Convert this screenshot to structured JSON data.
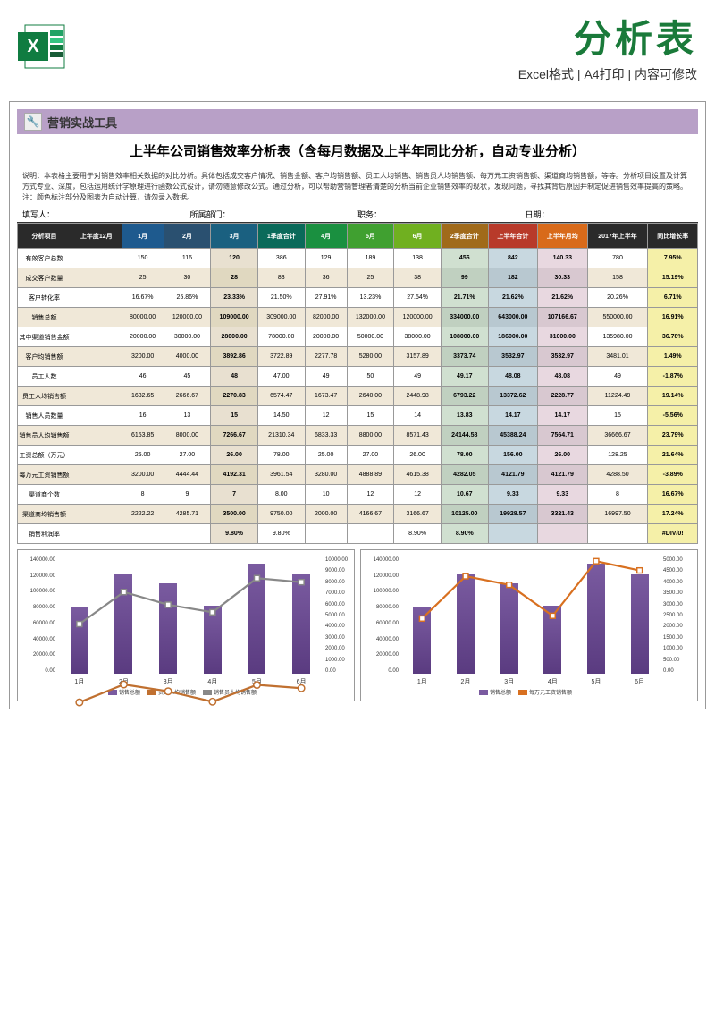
{
  "header": {
    "main_title": "分析表",
    "sub_title": "Excel格式 | A4打印 | 内容可修改"
  },
  "toolbar": {
    "label": "营销实战工具"
  },
  "doc_title": "上半年公司销售效率分析表（含每月数据及上半年同比分析，自动专业分析）",
  "description": "说明：本表格主要用于对销售效率相关数据的对比分析。具体包括成交客户情况、销售金额、客户均销售额、员工人均销售、销售员人均销售额、每万元工资销售额、渠道商均销售额，等等。分析项目设置及计算方式专业、深度，包括运用统计学原理进行函数公式设计，请勿随意修改公式。通过分析，可以帮助营销管理者清楚的分析当前企业销售效率的现状，发现问题，寻找其背后原因并制定促进销售效率提高的策略。注：颜色标注部分及图表为自动计算，请勿录入数据。",
  "meta": {
    "writer": "填写人：",
    "dept": "所属部门：",
    "role": "职务：",
    "date": "日期："
  },
  "columns": [
    {
      "label": "分析项目",
      "bg": "#2a2a2a"
    },
    {
      "label": "上年度12月",
      "bg": "#2a2a2a"
    },
    {
      "label": "1月",
      "bg": "#1e5a8e"
    },
    {
      "label": "2月",
      "bg": "#2a5070"
    },
    {
      "label": "3月",
      "bg": "#1a6080"
    },
    {
      "label": "1季度合计",
      "bg": "#0a6a5a"
    },
    {
      "label": "4月",
      "bg": "#1a9040"
    },
    {
      "label": "5月",
      "bg": "#40a030"
    },
    {
      "label": "6月",
      "bg": "#70b020"
    },
    {
      "label": "2季度合计",
      "bg": "#a06a1a"
    },
    {
      "label": "上半年合计",
      "bg": "#b83a2a"
    },
    {
      "label": "上半年月均",
      "bg": "#d86a1a"
    },
    {
      "label": "2017年上半年",
      "bg": "#2a2a2a"
    },
    {
      "label": "同比增长率",
      "bg": "#2a2a2a"
    }
  ],
  "rows": [
    {
      "label": "有效客户总数",
      "cells": [
        "",
        "150",
        "116",
        "120",
        "386",
        "129",
        "189",
        "138",
        "456",
        "842",
        "140.33",
        "780",
        "7.95%"
      ]
    },
    {
      "label": "成交客户数量",
      "cells": [
        "",
        "25",
        "30",
        "28",
        "83",
        "36",
        "25",
        "38",
        "99",
        "182",
        "30.33",
        "158",
        "15.19%"
      ]
    },
    {
      "label": "客户转化率",
      "cells": [
        "",
        "16.67%",
        "25.86%",
        "23.33%",
        "21.50%",
        "27.91%",
        "13.23%",
        "27.54%",
        "21.71%",
        "21.62%",
        "21.62%",
        "20.26%",
        "6.71%"
      ]
    },
    {
      "label": "销售总额",
      "cells": [
        "",
        "80000.00",
        "120000.00",
        "109000.00",
        "309000.00",
        "82000.00",
        "132000.00",
        "120000.00",
        "334000.00",
        "643000.00",
        "107166.67",
        "550000.00",
        "16.91%"
      ]
    },
    {
      "label": "其中渠道销售金额",
      "cells": [
        "",
        "20000.00",
        "30000.00",
        "28000.00",
        "78000.00",
        "20000.00",
        "50000.00",
        "38000.00",
        "108000.00",
        "186000.00",
        "31000.00",
        "135980.00",
        "36.78%"
      ]
    },
    {
      "label": "客户均销售额",
      "cells": [
        "",
        "3200.00",
        "4000.00",
        "3892.86",
        "3722.89",
        "2277.78",
        "5280.00",
        "3157.89",
        "3373.74",
        "3532.97",
        "3532.97",
        "3481.01",
        "1.49%"
      ]
    },
    {
      "label": "员工人数",
      "cells": [
        "",
        "46",
        "45",
        "48",
        "47.00",
        "49",
        "50",
        "49",
        "49.17",
        "48.08",
        "48.08",
        "49",
        "-1.87%"
      ]
    },
    {
      "label": "员工人均销售额",
      "cells": [
        "",
        "1632.65",
        "2666.67",
        "2270.83",
        "6574.47",
        "1673.47",
        "2640.00",
        "2448.98",
        "6793.22",
        "13372.62",
        "2228.77",
        "11224.49",
        "19.14%"
      ]
    },
    {
      "label": "销售人员数量",
      "cells": [
        "",
        "16",
        "13",
        "15",
        "14.50",
        "12",
        "15",
        "14",
        "13.83",
        "14.17",
        "14.17",
        "15",
        "-5.56%"
      ]
    },
    {
      "label": "销售员人均销售额",
      "cells": [
        "",
        "6153.85",
        "8000.00",
        "7266.67",
        "21310.34",
        "6833.33",
        "8800.00",
        "8571.43",
        "24144.58",
        "45388.24",
        "7564.71",
        "36666.67",
        "23.79%"
      ]
    },
    {
      "label": "工资总额（万元）",
      "cells": [
        "",
        "25.00",
        "27.00",
        "26.00",
        "78.00",
        "25.00",
        "27.00",
        "26.00",
        "78.00",
        "156.00",
        "26.00",
        "128.25",
        "21.64%"
      ]
    },
    {
      "label": "每万元工资销售额",
      "cells": [
        "",
        "3200.00",
        "4444.44",
        "4192.31",
        "3961.54",
        "3280.00",
        "4888.89",
        "4615.38",
        "4282.05",
        "4121.79",
        "4121.79",
        "4288.50",
        "-3.89%"
      ]
    },
    {
      "label": "渠道商个数",
      "cells": [
        "",
        "8",
        "9",
        "7",
        "8.00",
        "10",
        "12",
        "12",
        "10.67",
        "9.33",
        "9.33",
        "8",
        "16.67%"
      ]
    },
    {
      "label": "渠道商均销售额",
      "cells": [
        "",
        "2222.22",
        "4285.71",
        "3500.00",
        "9750.00",
        "2000.00",
        "4166.67",
        "3166.67",
        "10125.00",
        "19928.57",
        "3321.43",
        "16997.50",
        "17.24%"
      ]
    },
    {
      "label": "销售利润率",
      "cells": [
        "",
        "",
        "",
        "9.80%",
        "9.80%",
        "",
        "",
        "8.90%",
        "8.90%",
        "",
        "",
        "",
        "#DIV/0!"
      ]
    }
  ],
  "chart1": {
    "y_max": 140000,
    "y_ticks": [
      "140000.00",
      "120000.00",
      "100000.00",
      "80000.00",
      "60000.00",
      "40000.00",
      "20000.00",
      "0.00"
    ],
    "y2_ticks": [
      "10000.00",
      "9000.00",
      "8000.00",
      "7000.00",
      "6000.00",
      "5000.00",
      "4000.00",
      "3000.00",
      "2000.00",
      "1000.00",
      "0.00"
    ],
    "x": [
      "1月",
      "2月",
      "3月",
      "4月",
      "5月",
      "6月"
    ],
    "bars": [
      80000,
      120000,
      109000,
      82000,
      132000,
      120000
    ],
    "line1": [
      1632,
      2666,
      2270,
      1673,
      2640,
      2448
    ],
    "line2": [
      6153,
      8000,
      7266,
      6833,
      8800,
      8571
    ],
    "legend": [
      "销售总额",
      "员工人均销售额",
      "销售员人均销售额"
    ],
    "bar_color": "#7a5ba0",
    "line1_color": "#c07030",
    "line2_color": "#888"
  },
  "chart2": {
    "y_max": 140000,
    "y_ticks": [
      "140000.00",
      "120000.00",
      "100000.00",
      "80000.00",
      "60000.00",
      "40000.00",
      "20000.00",
      "0.00"
    ],
    "y2_max": 5000,
    "y2_ticks": [
      "5000.00",
      "4500.00",
      "4000.00",
      "3500.00",
      "3000.00",
      "2500.00",
      "2000.00",
      "1500.00",
      "1000.00",
      "500.00",
      "0.00"
    ],
    "x": [
      "1月",
      "2月",
      "3月",
      "4月",
      "5月",
      "6月"
    ],
    "bars": [
      80000,
      120000,
      109000,
      82000,
      132000,
      120000
    ],
    "line": [
      3200,
      4444,
      4192,
      3280,
      4888,
      4615
    ],
    "legend": [
      "销售总额",
      "每万元工资销售额"
    ],
    "bar_color": "#7a5ba0",
    "line_color": "#d87020"
  }
}
